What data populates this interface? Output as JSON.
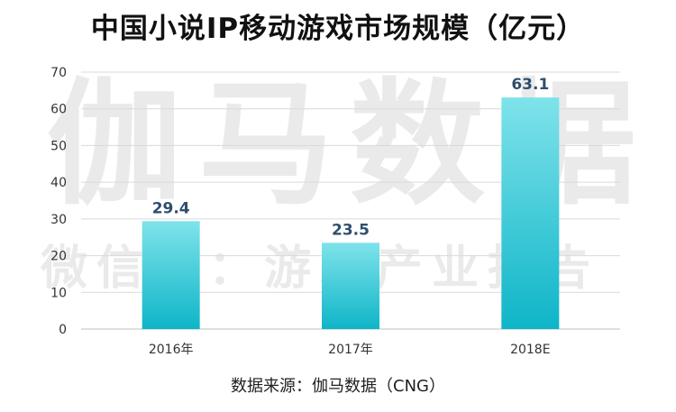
{
  "watermark": {
    "main": "伽马数据",
    "sub": "微信号：游戏产业报告"
  },
  "source": "数据来源：伽马数据（CNG）",
  "colors": {
    "bar_top": "#7fe3ea",
    "bar_bottom": "#0eb5c8",
    "label": "#2f4e6e",
    "grid": "#d9d9d9",
    "axis": "#bfbfbf"
  },
  "chart_data": {
    "type": "bar",
    "title": "中国小说IP移动游戏市场规模（亿元）",
    "categories": [
      "2016年",
      "2017年",
      "2018E"
    ],
    "values": [
      29.4,
      23.5,
      63.1
    ],
    "value_labels": [
      "29.4",
      "23.5",
      "63.1"
    ],
    "ylim": [
      0,
      70
    ],
    "yticks": [
      "0",
      "10",
      "20",
      "30",
      "40",
      "50",
      "60",
      "70"
    ],
    "grid": true,
    "legend": "none"
  }
}
